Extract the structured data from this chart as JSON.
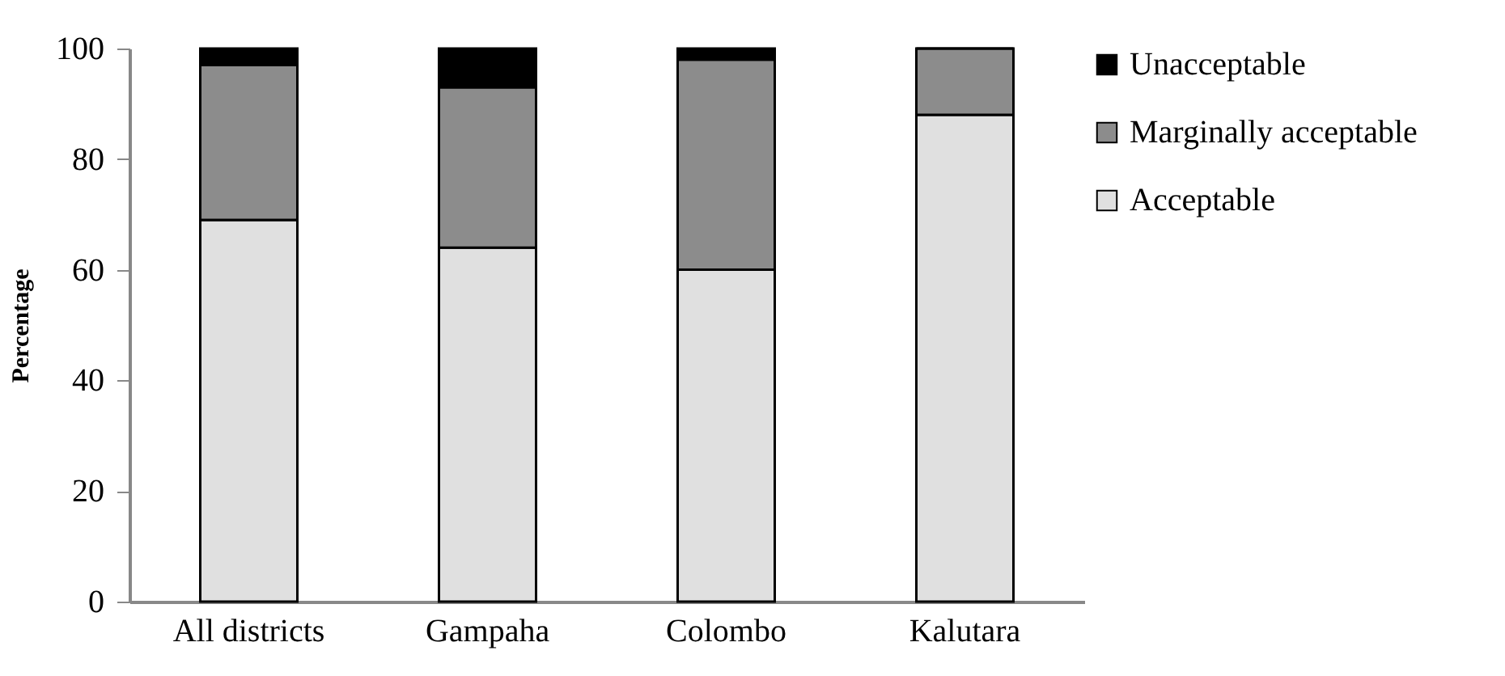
{
  "chart_data": {
    "type": "bar",
    "ylabel": "Percentage",
    "categories": [
      "All districts",
      "Gampaha",
      "Colombo",
      "Kalutara"
    ],
    "series": [
      {
        "name": "Acceptable",
        "color": "#e0e0e0",
        "values": [
          69,
          64,
          60,
          88
        ]
      },
      {
        "name": "Marginally acceptable",
        "color": "#8c8c8c",
        "values": [
          28,
          29,
          38,
          12
        ]
      },
      {
        "name": "Unacceptable",
        "color": "#000000",
        "values": [
          3,
          7,
          2,
          0
        ]
      }
    ],
    "stacked": true,
    "ylim": [
      0,
      100
    ],
    "yticks": [
      0,
      20,
      40,
      60,
      80,
      100
    ],
    "grid": false,
    "legend": "right"
  }
}
